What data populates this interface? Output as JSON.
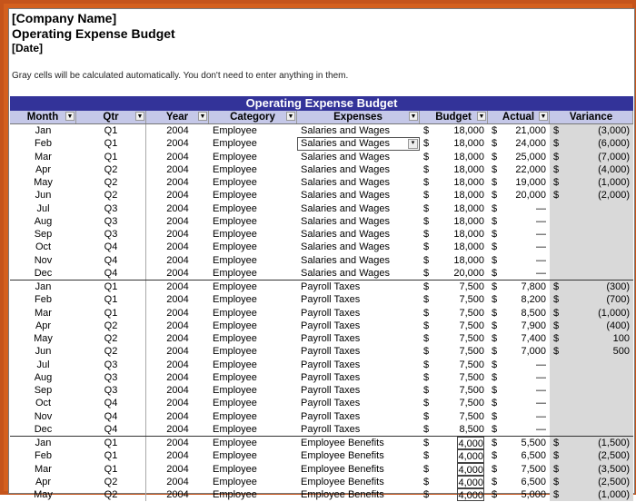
{
  "header": {
    "company": "[Company Name]",
    "title": "Operating Expense Budget",
    "date": "[Date]",
    "note": "Gray cells will be calculated automatically. You don't  need to enter anything in them."
  },
  "table": {
    "banner": "Operating Expense Budget",
    "columns": [
      "Month",
      "Qtr",
      "Year",
      "Category",
      "Expenses",
      "Budget",
      "Actual",
      "Variance"
    ],
    "currency": "$",
    "rows": [
      {
        "month": "Jan",
        "qtr": "Q1",
        "year": "2004",
        "category": "Employee",
        "expense": "Salaries and Wages",
        "budget": "18,000",
        "actual": "21,000",
        "variance": "(3,000)"
      },
      {
        "month": "Feb",
        "qtr": "Q1",
        "year": "2004",
        "category": "Employee",
        "expense": "Salaries and Wages",
        "budget": "18,000",
        "actual": "24,000",
        "variance": "(6,000)",
        "selected": true
      },
      {
        "month": "Mar",
        "qtr": "Q1",
        "year": "2004",
        "category": "Employee",
        "expense": "Salaries and Wages",
        "budget": "18,000",
        "actual": "25,000",
        "variance": "(7,000)"
      },
      {
        "month": "Apr",
        "qtr": "Q2",
        "year": "2004",
        "category": "Employee",
        "expense": "Salaries and Wages",
        "budget": "18,000",
        "actual": "22,000",
        "variance": "(4,000)"
      },
      {
        "month": "May",
        "qtr": "Q2",
        "year": "2004",
        "category": "Employee",
        "expense": "Salaries and Wages",
        "budget": "18,000",
        "actual": "19,000",
        "variance": "(1,000)"
      },
      {
        "month": "Jun",
        "qtr": "Q2",
        "year": "2004",
        "category": "Employee",
        "expense": "Salaries and Wages",
        "budget": "18,000",
        "actual": "20,000",
        "variance": "(2,000)"
      },
      {
        "month": "Jul",
        "qtr": "Q3",
        "year": "2004",
        "category": "Employee",
        "expense": "Salaries and Wages",
        "budget": "18,000",
        "actual": "—",
        "variance": ""
      },
      {
        "month": "Aug",
        "qtr": "Q3",
        "year": "2004",
        "category": "Employee",
        "expense": "Salaries and Wages",
        "budget": "18,000",
        "actual": "—",
        "variance": ""
      },
      {
        "month": "Sep",
        "qtr": "Q3",
        "year": "2004",
        "category": "Employee",
        "expense": "Salaries and Wages",
        "budget": "18,000",
        "actual": "—",
        "variance": ""
      },
      {
        "month": "Oct",
        "qtr": "Q4",
        "year": "2004",
        "category": "Employee",
        "expense": "Salaries and Wages",
        "budget": "18,000",
        "actual": "—",
        "variance": ""
      },
      {
        "month": "Nov",
        "qtr": "Q4",
        "year": "2004",
        "category": "Employee",
        "expense": "Salaries and Wages",
        "budget": "18,000",
        "actual": "—",
        "variance": ""
      },
      {
        "month": "Dec",
        "qtr": "Q4",
        "year": "2004",
        "category": "Employee",
        "expense": "Salaries and Wages",
        "budget": "20,000",
        "actual": "—",
        "variance": ""
      },
      {
        "month": "Jan",
        "qtr": "Q1",
        "year": "2004",
        "category": "Employee",
        "expense": "Payroll Taxes",
        "budget": "7,500",
        "actual": "7,800",
        "variance": "(300)",
        "sep": true
      },
      {
        "month": "Feb",
        "qtr": "Q1",
        "year": "2004",
        "category": "Employee",
        "expense": "Payroll Taxes",
        "budget": "7,500",
        "actual": "8,200",
        "variance": "(700)"
      },
      {
        "month": "Mar",
        "qtr": "Q1",
        "year": "2004",
        "category": "Employee",
        "expense": "Payroll Taxes",
        "budget": "7,500",
        "actual": "8,500",
        "variance": "(1,000)"
      },
      {
        "month": "Apr",
        "qtr": "Q2",
        "year": "2004",
        "category": "Employee",
        "expense": "Payroll Taxes",
        "budget": "7,500",
        "actual": "7,900",
        "variance": "(400)"
      },
      {
        "month": "May",
        "qtr": "Q2",
        "year": "2004",
        "category": "Employee",
        "expense": "Payroll Taxes",
        "budget": "7,500",
        "actual": "7,400",
        "variance": "100"
      },
      {
        "month": "Jun",
        "qtr": "Q2",
        "year": "2004",
        "category": "Employee",
        "expense": "Payroll Taxes",
        "budget": "7,500",
        "actual": "7,000",
        "variance": "500"
      },
      {
        "month": "Jul",
        "qtr": "Q3",
        "year": "2004",
        "category": "Employee",
        "expense": "Payroll Taxes",
        "budget": "7,500",
        "actual": "—",
        "variance": ""
      },
      {
        "month": "Aug",
        "qtr": "Q3",
        "year": "2004",
        "category": "Employee",
        "expense": "Payroll Taxes",
        "budget": "7,500",
        "actual": "—",
        "variance": ""
      },
      {
        "month": "Sep",
        "qtr": "Q3",
        "year": "2004",
        "category": "Employee",
        "expense": "Payroll Taxes",
        "budget": "7,500",
        "actual": "—",
        "variance": ""
      },
      {
        "month": "Oct",
        "qtr": "Q4",
        "year": "2004",
        "category": "Employee",
        "expense": "Payroll Taxes",
        "budget": "7,500",
        "actual": "—",
        "variance": ""
      },
      {
        "month": "Nov",
        "qtr": "Q4",
        "year": "2004",
        "category": "Employee",
        "expense": "Payroll Taxes",
        "budget": "7,500",
        "actual": "—",
        "variance": ""
      },
      {
        "month": "Dec",
        "qtr": "Q4",
        "year": "2004",
        "category": "Employee",
        "expense": "Payroll Taxes",
        "budget": "8,500",
        "actual": "—",
        "variance": ""
      },
      {
        "month": "Jan",
        "qtr": "Q1",
        "year": "2004",
        "category": "Employee",
        "expense": "Employee Benefits",
        "budget": "4,000",
        "actual": "5,500",
        "variance": "(1,500)",
        "sep": true,
        "boxed": true
      },
      {
        "month": "Feb",
        "qtr": "Q1",
        "year": "2004",
        "category": "Employee",
        "expense": "Employee Benefits",
        "budget": "4,000",
        "actual": "6,500",
        "variance": "(2,500)",
        "boxed": true
      },
      {
        "month": "Mar",
        "qtr": "Q1",
        "year": "2004",
        "category": "Employee",
        "expense": "Employee Benefits",
        "budget": "4,000",
        "actual": "7,500",
        "variance": "(3,500)",
        "boxed": true
      },
      {
        "month": "Apr",
        "qtr": "Q2",
        "year": "2004",
        "category": "Employee",
        "expense": "Employee Benefits",
        "budget": "4,000",
        "actual": "6,500",
        "variance": "(2,500)",
        "boxed": true
      },
      {
        "month": "May",
        "qtr": "Q2",
        "year": "2004",
        "category": "Employee",
        "expense": "Employee Benefits",
        "budget": "4,000",
        "actual": "5,000",
        "variance": "(1,000)",
        "boxed": true
      }
    ]
  },
  "colors": {
    "frame": "#d4601e",
    "banner": "#333399",
    "header_fill": "#c5c8e8",
    "gray_cells": "#d9d9d9"
  }
}
